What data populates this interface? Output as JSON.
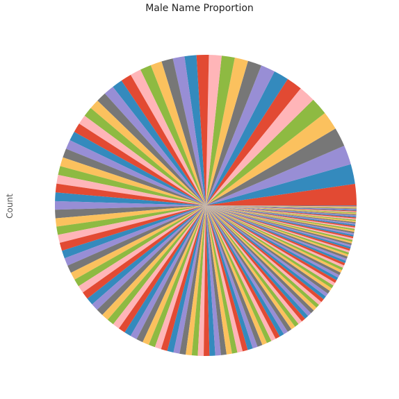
{
  "chart_data": {
    "type": "pie",
    "title": "Male Name Proportion",
    "ylabel": "Count",
    "xlabel": "",
    "start_angle_deg": 0,
    "direction": "counterclockwise",
    "legend": "none",
    "palette": [
      "#E24A33",
      "#348ABD",
      "#988ED5",
      "#777777",
      "#FBC15E",
      "#8EBA42",
      "#FFB5B8"
    ],
    "values": [
      5.4,
      5.0,
      4.9,
      4.8,
      4.7,
      4.4,
      4.2,
      4.0,
      3.8,
      3.6,
      3.5,
      3.4,
      3.3,
      3.2,
      3.1,
      3.0,
      2.95,
      2.9,
      2.85,
      2.8,
      2.75,
      2.7,
      2.65,
      2.6,
      2.55,
      2.5,
      2.45,
      2.4,
      2.38,
      2.35,
      2.33,
      2.3,
      2.28,
      2.25,
      2.22,
      2.2,
      2.18,
      2.15,
      2.13,
      2.1,
      2.08,
      2.05,
      2.03,
      2.0,
      1.98,
      1.96,
      1.94,
      1.92,
      1.9,
      1.88,
      1.86,
      1.84,
      1.82,
      1.8,
      1.78,
      1.76,
      1.74,
      1.72,
      1.7,
      1.68,
      1.66,
      1.64,
      1.62,
      1.6,
      1.58,
      1.56,
      1.54,
      1.52,
      1.5,
      1.48,
      1.46,
      1.44,
      1.42,
      1.4,
      1.38,
      1.36,
      1.34,
      1.32,
      1.3,
      1.28,
      1.26,
      1.24,
      1.22,
      1.2,
      1.18,
      1.16,
      1.14,
      1.12,
      1.1,
      1.08,
      1.06,
      1.04,
      1.02,
      1.0,
      0.98,
      0.96,
      0.94,
      0.92,
      0.9,
      0.88,
      0.86,
      0.84,
      0.82,
      0.8,
      0.78,
      0.76,
      0.74,
      0.72,
      0.7,
      0.68,
      0.66,
      0.64,
      0.62,
      0.6,
      0.58,
      0.56,
      0.54,
      0.52,
      0.5,
      0.49,
      0.48,
      0.47,
      0.46,
      0.45,
      0.44,
      0.43,
      0.42,
      0.41,
      0.4,
      0.39,
      0.38,
      0.37,
      0.36,
      0.35,
      0.34,
      0.33,
      0.32,
      0.31,
      0.3,
      0.29,
      0.28,
      0.27,
      0.26,
      0.25,
      0.24,
      0.23,
      0.22,
      0.21,
      0.2,
      0.19,
      0.18,
      0.17,
      0.16,
      0.15,
      0.14,
      0.13
    ]
  }
}
